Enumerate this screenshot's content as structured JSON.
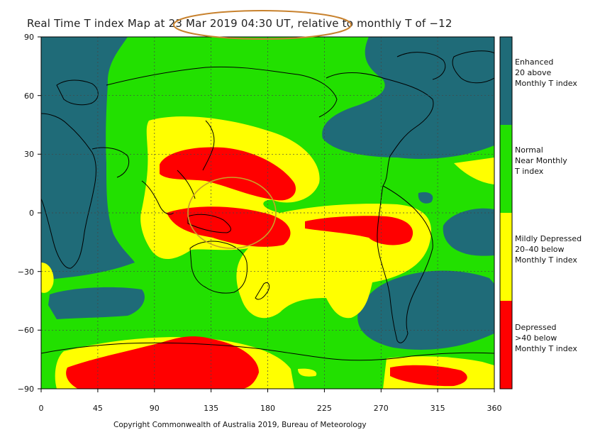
{
  "title": "Real Time T index Map at 23 Mar 2019 04:30 UT, relative to monthly T of −12",
  "axes": {
    "y_ticks": [
      "90",
      "60",
      "30",
      "0",
      "−30",
      "−60",
      "−90"
    ],
    "x_ticks": [
      "0",
      "45",
      "90",
      "135",
      "180",
      "225",
      "270",
      "315",
      "360"
    ]
  },
  "legend": [
    {
      "lines": [
        "Enhanced",
        "20 above",
        "Monthly T index"
      ],
      "color": "#1f6b78"
    },
    {
      "lines": [
        "Normal",
        "Near Monthly",
        "T index"
      ],
      "color": "#22e000"
    },
    {
      "lines": [
        "Mildly Depressed",
        "20–40 below",
        "Monthly T index"
      ],
      "color": "#ffff00"
    },
    {
      "lines": [
        "Depressed",
        ">40 below",
        "Monthly T index"
      ],
      "color": "#ff0000"
    }
  ],
  "copyright": "Copyright Commonwealth of Australia 2019, Bureau of Meteorology",
  "annotations": {
    "title_ellipse_color": "#c8822e",
    "map_circle_color": "#c9a227"
  }
}
